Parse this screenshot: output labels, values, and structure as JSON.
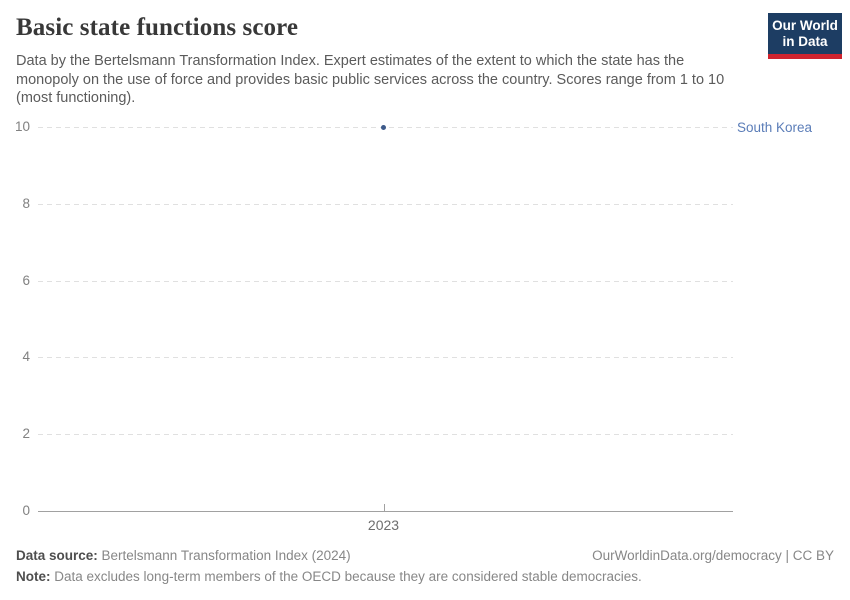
{
  "header": {
    "title": "Basic state functions score",
    "subtitle": "Data by the Bertelsmann Transformation Index. Expert estimates of the extent to which the state has the monopoly on the use of force and provides basic public services across the country. Scores range from 1 to 10 (most functioning).",
    "logo": {
      "line1": "Our World",
      "line2": "in Data",
      "bg_color": "#1d3d63",
      "accent_color": "#d0232e"
    }
  },
  "chart_data": {
    "type": "scatter",
    "title": "Basic state functions score",
    "xlabel": "",
    "ylabel": "",
    "x": [
      2023
    ],
    "xtick_labels": [
      "2023"
    ],
    "series": [
      {
        "name": "South Korea",
        "values": [
          10
        ],
        "color": "#3d5a8a",
        "label_color": "#5b7db8"
      }
    ],
    "ylim": [
      0,
      10
    ],
    "yticks": [
      0,
      2,
      4,
      6,
      8,
      10
    ],
    "grid": "horizontal-dashed",
    "grid_color": "#e0e0e0",
    "axis_color": "#a1a1a1",
    "legend_position": "right-of-plot"
  },
  "footer": {
    "source_label": "Data source:",
    "source_text": " Bertelsmann Transformation Index (2024)",
    "credit": "OurWorldinData.org/democracy | CC BY",
    "note_label": "Note:",
    "note_text": " Data excludes long-term members of the OECD because they are considered stable democracies."
  }
}
